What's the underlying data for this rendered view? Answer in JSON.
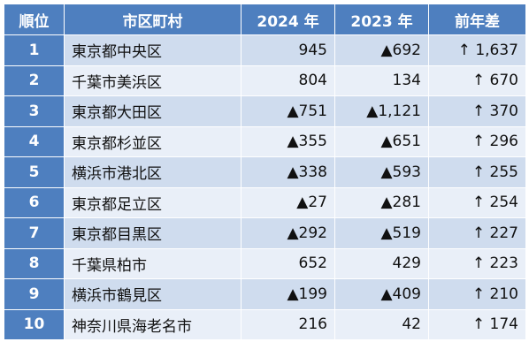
{
  "headers": [
    "順位",
    "市区町村",
    "2024 年",
    "2023 年",
    "前年差"
  ],
  "rows": [
    {
      "rank": "1",
      "city": "東京都中央区",
      "y2024": "945",
      "y2023": "▲692",
      "diff": "↑ 1,637"
    },
    {
      "rank": "2",
      "city": "千葉市美浜区",
      "y2024": "804",
      "y2023": "134",
      "diff": "↑ 670"
    },
    {
      "rank": "3",
      "city": "東京都大田区",
      "y2024": "▲751",
      "y2023": "▲1,121",
      "diff": "↑ 370"
    },
    {
      "rank": "4",
      "city": "東京都杉並区",
      "y2024": "▲355",
      "y2023": "▲651",
      "diff": "↑ 296"
    },
    {
      "rank": "5",
      "city": "横浜市港北区",
      "y2024": "▲338",
      "y2023": "▲593",
      "diff": "↑ 255"
    },
    {
      "rank": "6",
      "city": "東京都足立区",
      "y2024": "▲27",
      "y2023": "▲281",
      "diff": "↑ 254"
    },
    {
      "rank": "7",
      "city": "東京都目黒区",
      "y2024": "▲292",
      "y2023": "▲519",
      "diff": "↑ 227"
    },
    {
      "rank": "8",
      "city": "千葉県柏市",
      "y2024": "652",
      "y2023": "429",
      "diff": "↑ 223"
    },
    {
      "rank": "9",
      "city": "横浜市鶴見区",
      "y2024": "▲199",
      "y2023": "▲409",
      "diff": "↑ 210"
    },
    {
      "rank": "10",
      "city": "神奈川県海老名市",
      "y2024": "216",
      "y2023": "42",
      "diff": "↑ 174"
    }
  ],
  "colors": {
    "header_bg": "#4e7fbf",
    "row_odd_bg": "#cfdcee",
    "row_even_bg": "#e9eff8"
  }
}
